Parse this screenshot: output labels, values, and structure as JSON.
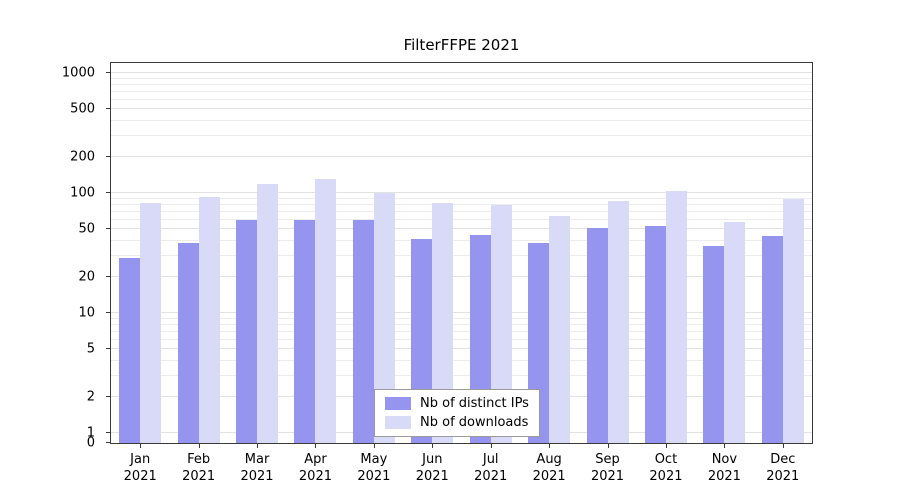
{
  "title": "FilterFFPE 2021",
  "colors": {
    "distinct_ips": "#9595ef",
    "downloads": "#d9d9f8",
    "grid_minor": "#ececec",
    "grid_major": "#e2e2e2",
    "axis": "#3a3a3a",
    "text": "#000000"
  },
  "legend": {
    "items": [
      {
        "label": "Nb of distinct IPs",
        "color_key": "distinct_ips"
      },
      {
        "label": "Nb of downloads",
        "color_key": "downloads"
      }
    ]
  },
  "chart_data": {
    "type": "bar",
    "title": "FilterFFPE 2021",
    "categories": [
      "Jan 2021",
      "Feb 2021",
      "Mar 2021",
      "Apr 2021",
      "May 2021",
      "Jun 2021",
      "Jul 2021",
      "Aug 2021",
      "Sep 2021",
      "Oct 2021",
      "Nov 2021",
      "Dec 2021"
    ],
    "series": [
      {
        "name": "Nb of distinct IPs",
        "color_key": "distinct_ips",
        "values": [
          29,
          38,
          60,
          60,
          60,
          41,
          45,
          38,
          51,
          53,
          36,
          44
        ]
      },
      {
        "name": "Nb of downloads",
        "color_key": "downloads",
        "values": [
          83,
          92,
          120,
          132,
          100,
          82,
          80,
          64,
          86,
          103,
          57,
          89
        ]
      }
    ],
    "yticks": [
      0,
      1,
      2,
      5,
      10,
      20,
      50,
      100,
      200,
      500,
      1000
    ],
    "yscale": "log",
    "ylim": [
      0,
      1000
    ],
    "xlabel": "",
    "ylabel": "",
    "grid": "horizontal",
    "legend_position": "lower center"
  }
}
